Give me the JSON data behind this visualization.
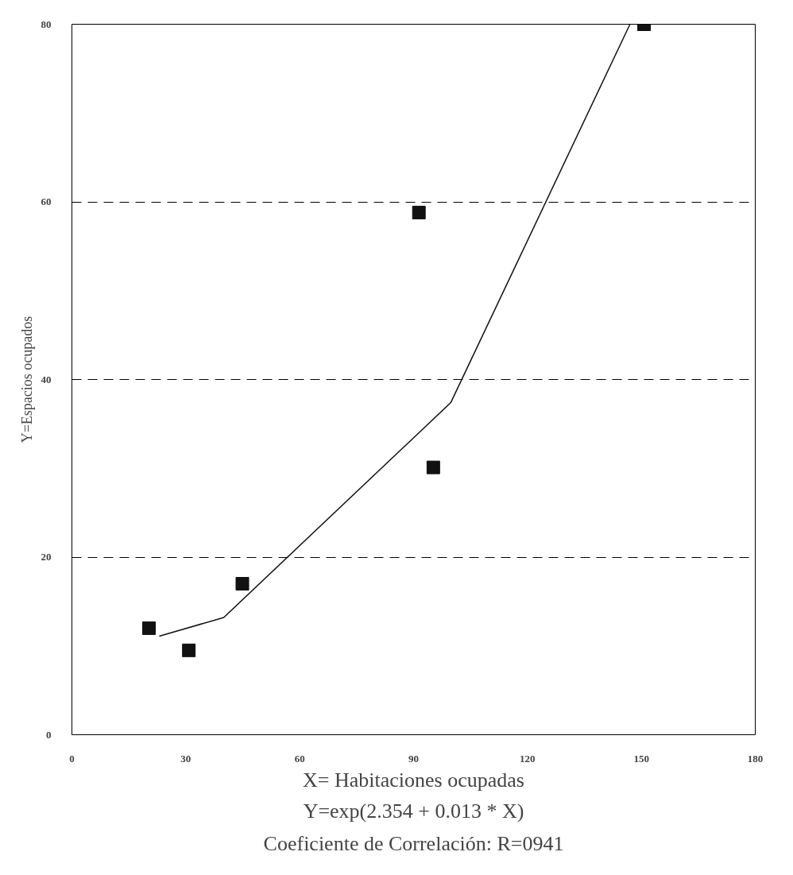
{
  "chart_data": {
    "type": "scatter",
    "xlabel": "X= Habitaciones ocupadas",
    "ylabel": "Y=Espacios ocupados",
    "annotations": [
      "Y=exp(2.354 + 0.013 * X)",
      "Coeficiente de Correlación: R=0941"
    ],
    "xlim": [
      0,
      180
    ],
    "ylim": [
      0,
      80
    ],
    "xticks": [
      0,
      30,
      60,
      90,
      120,
      150,
      180
    ],
    "yticks": [
      0,
      20,
      40,
      60,
      80
    ],
    "grid": "y",
    "series": [
      {
        "marker": "square",
        "color": "#111111",
        "x": [
          20.3,
          30.8,
          44.9,
          91.4,
          95.2,
          150.7
        ],
        "values": [
          12.0,
          9.5,
          17.0,
          58.8,
          30.1,
          80
        ]
      },
      {
        "type": "line",
        "color": "#111111",
        "x": [
          23,
          40,
          99.8,
          147
        ],
        "values": [
          11.1,
          13.2,
          37.4,
          80
        ]
      }
    ]
  }
}
